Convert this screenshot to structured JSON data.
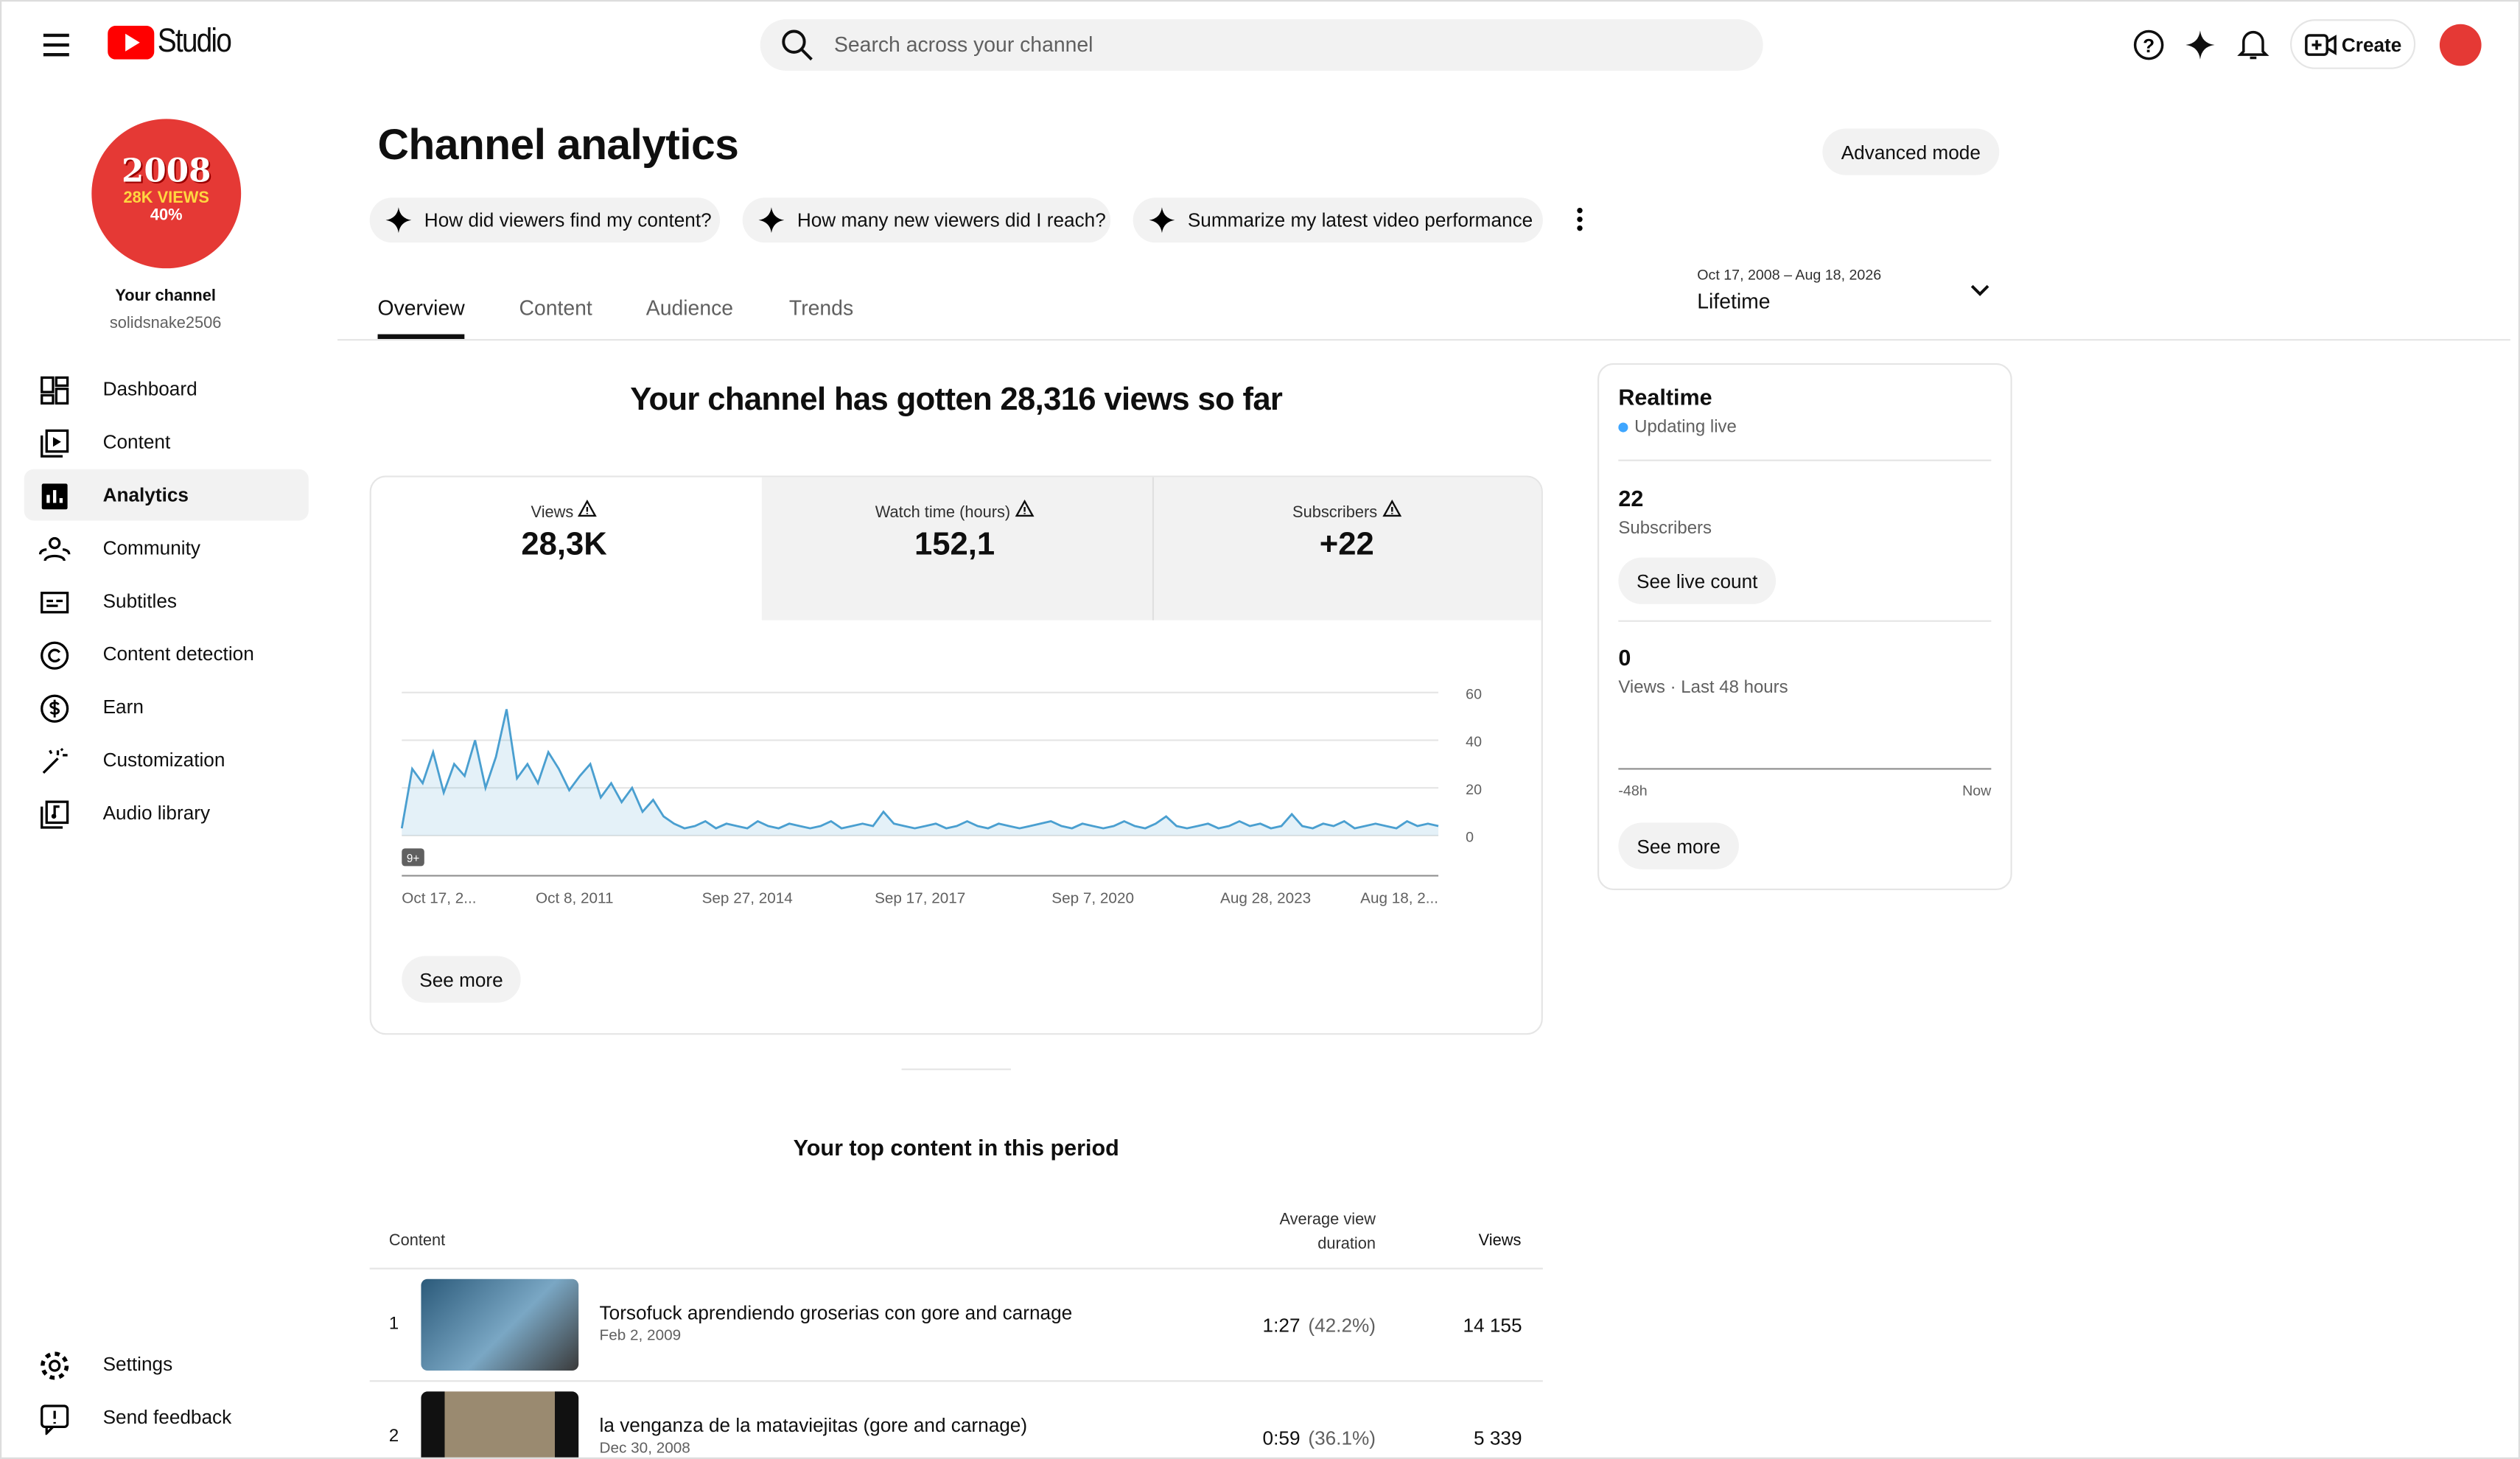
{
  "topbar": {
    "logo": "Studio",
    "search_placeholder": "Search across your channel",
    "create": "Create"
  },
  "sidebar": {
    "avatar": {
      "line1": "2008",
      "line2": "28K VIEWS",
      "line3": "40%"
    },
    "channel_label": "Your channel",
    "handle": "solidsnake2506",
    "nav": [
      "Dashboard",
      "Content",
      "Analytics",
      "Community",
      "Subtitles",
      "Content detection",
      "Earn",
      "Customization",
      "Audio library"
    ],
    "bottom": [
      "Settings",
      "Send feedback"
    ]
  },
  "header": {
    "title": "Channel analytics",
    "advanced_mode": "Advanced mode",
    "prompts": [
      "How did viewers find my content?",
      "How many new viewers did I reach?",
      "Summarize my latest video performance"
    ],
    "tabs": [
      "Overview",
      "Content",
      "Audience",
      "Trends"
    ],
    "date_range": "Oct 17, 2008 – Aug 18, 2026",
    "period": "Lifetime"
  },
  "summary": {
    "headline": "Your channel has gotten 28,316 views so far",
    "metrics": [
      {
        "label": "Views",
        "value": "28,3K"
      },
      {
        "label": "Watch time (hours)",
        "value": "152,1"
      },
      {
        "label": "Subscribers",
        "value": "+22"
      }
    ],
    "see_more": "See more"
  },
  "chart_data": {
    "type": "area",
    "color": "#4a9fd0",
    "ylim": [
      0,
      60
    ],
    "yticks": [
      0,
      20,
      40,
      60
    ],
    "badge": "9+",
    "x_labels": [
      "Oct 17, 2...",
      "Oct 8, 2011",
      "Sep 27, 2014",
      "Sep 17, 2017",
      "Sep 7, 2020",
      "Aug 28, 2023",
      "Aug 18, 2..."
    ],
    "values": [
      3,
      28,
      22,
      35,
      18,
      30,
      25,
      40,
      20,
      33,
      53,
      24,
      30,
      22,
      35,
      28,
      19,
      25,
      30,
      16,
      22,
      14,
      20,
      10,
      15,
      8,
      5,
      3,
      4,
      6,
      3,
      5,
      4,
      3,
      6,
      4,
      3,
      5,
      4,
      3,
      4,
      6,
      3,
      4,
      5,
      4,
      10,
      5,
      4,
      3,
      4,
      5,
      3,
      4,
      6,
      4,
      3,
      5,
      4,
      3,
      4,
      5,
      6,
      4,
      3,
      5,
      4,
      3,
      4,
      6,
      4,
      3,
      5,
      8,
      4,
      3,
      4,
      5,
      3,
      4,
      6,
      4,
      5,
      3,
      4,
      9,
      4,
      3,
      5,
      4,
      6,
      3,
      4,
      5,
      4,
      3,
      6,
      4,
      5,
      4
    ]
  },
  "realtime": {
    "title": "Realtime",
    "status": "Updating live",
    "subscribers": 22,
    "subscribers_label": "Subscribers",
    "live_count": "See live count",
    "views": 0,
    "views_label": "Views · Last 48 hours",
    "start": "-48h",
    "end": "Now",
    "see_more": "See more"
  },
  "top_content": {
    "title": "Your top content in this period",
    "headers": [
      "Content",
      "Average view duration",
      "Views"
    ],
    "rows": [
      {
        "rank": 1,
        "title": "Torsofuck aprendiendo groserias con gore and carnage",
        "date": "Feb 2, 2009",
        "duration": "1:27",
        "percent": "(42.2%)",
        "views": "14 155"
      },
      {
        "rank": 2,
        "title": "la venganza de la mataviejitas (gore and carnage)",
        "date": "Dec 30, 2008",
        "duration": "0:59",
        "percent": "(36.1%)",
        "views": "5 339"
      }
    ]
  }
}
